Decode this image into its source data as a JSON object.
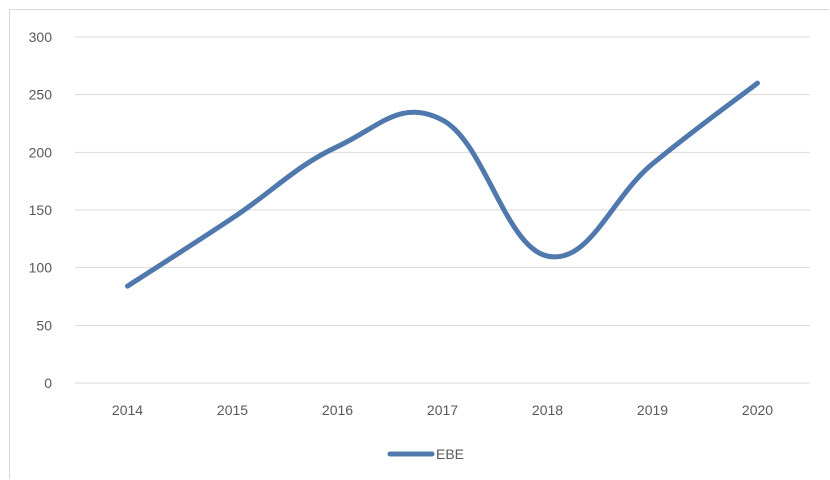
{
  "chart_data": {
    "type": "line",
    "title": "",
    "xlabel": "",
    "ylabel": "",
    "categories": [
      "2014",
      "2015",
      "2016",
      "2017",
      "2018",
      "2019",
      "2020"
    ],
    "series": [
      {
        "name": "EBE",
        "values": [
          84,
          143,
          205,
          228,
          110,
          190,
          260
        ]
      }
    ],
    "ylim": [
      0,
      300
    ],
    "yticks": [
      "0",
      "50",
      "100",
      "150",
      "200",
      "250",
      "300"
    ],
    "grid": "horizontal",
    "smooth": true,
    "legend": "bottom",
    "colors": {
      "series": "#4f78ad",
      "grid": "#d9d9d9",
      "text": "#595959"
    }
  }
}
